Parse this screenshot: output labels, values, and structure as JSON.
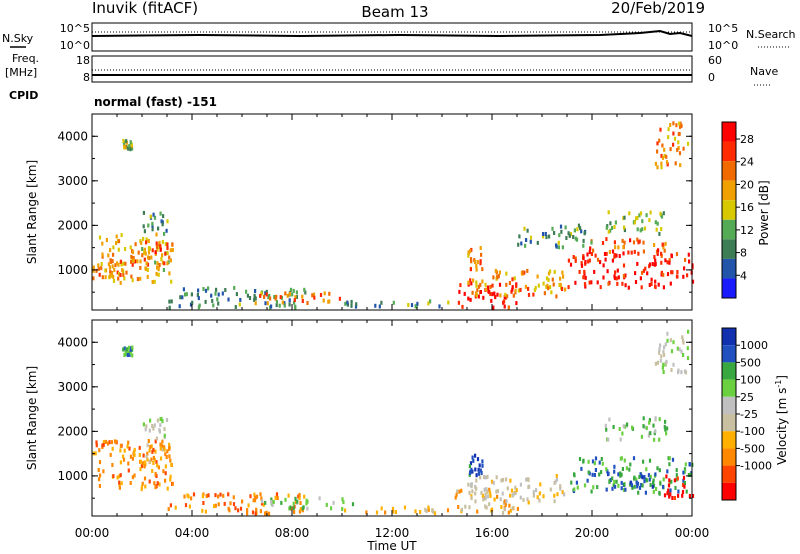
{
  "header": {
    "station": "Inuvik (fitACF)",
    "beam": "Beam 13",
    "date": "20/Feb/2019"
  },
  "top_panels": {
    "nsky_label": "N.Sky",
    "nsky_ticks": [
      "10^5",
      "10^0"
    ],
    "nsearch_label": "N.Search",
    "nsearch_ticks": [
      "10^5",
      "10^0"
    ],
    "freq_label": "Freq.",
    "freq_unit": "[MHz]",
    "freq_ticks": [
      "18",
      "8"
    ],
    "nave_label": "Nave",
    "nave_ticks": [
      "60",
      "0"
    ],
    "cpid_label": "CPID",
    "cpid_value": "normal (fast) -151"
  },
  "colors": {
    "power_scale": [
      "#1a1aff",
      "#2255aa",
      "#3d7d55",
      "#55aa55",
      "#d8c800",
      "#f0a000",
      "#f06a00",
      "#ff2a00",
      "#ff0000"
    ],
    "velocity_scale": [
      "#ff0000",
      "#ff4400",
      "#ff8800",
      "#ffb000",
      "#c8c0a0",
      "#c0c0c0",
      "#6ad040",
      "#3aa840",
      "#2050c0",
      "#1030b0"
    ]
  },
  "chart_data": [
    {
      "type": "heatmap",
      "name": "power",
      "xlabel": "",
      "ylabel": "Slant Range [km]",
      "ylim": [
        100,
        4500
      ],
      "yticks": [
        "1000",
        "2000",
        "3000",
        "4000"
      ],
      "x_ticks": [
        "00:00",
        "04:00",
        "08:00",
        "12:00",
        "16:00",
        "20:00",
        "00:00"
      ],
      "xlim_hours": [
        0,
        24
      ],
      "colorbar_label": "Power [dB]",
      "colorbar_ticks": [
        "4",
        "8",
        "12",
        "16",
        "20",
        "24",
        "28"
      ],
      "colorbar_range": [
        0,
        31
      ],
      "patches": [
        {
          "t0": 0.0,
          "t1": 3.2,
          "r0": 700,
          "r1": 1800,
          "level": 18
        },
        {
          "t0": 1.5,
          "t1": 3.0,
          "r0": 1100,
          "r1": 1700,
          "level": 24
        },
        {
          "t0": 0.2,
          "t1": 1.2,
          "r0": 800,
          "r1": 1200,
          "level": 20
        },
        {
          "t0": 2.0,
          "t1": 3.0,
          "r0": 1800,
          "r1": 2300,
          "level": 10
        },
        {
          "t0": 3.0,
          "t1": 8.5,
          "r0": 150,
          "r1": 600,
          "level": 9
        },
        {
          "t0": 6.5,
          "t1": 10.5,
          "r0": 250,
          "r1": 500,
          "level": 22
        },
        {
          "t0": 10.0,
          "t1": 14.5,
          "r0": 150,
          "r1": 300,
          "level": 10
        },
        {
          "t0": 14.5,
          "t1": 17.0,
          "r0": 150,
          "r1": 700,
          "level": 28
        },
        {
          "t0": 15.0,
          "t1": 19.0,
          "r0": 400,
          "r1": 1000,
          "level": 20
        },
        {
          "t0": 15.0,
          "t1": 15.6,
          "r0": 1000,
          "r1": 1500,
          "level": 22
        },
        {
          "t0": 19.0,
          "t1": 24.0,
          "r0": 600,
          "r1": 1400,
          "level": 28
        },
        {
          "t0": 19.5,
          "t1": 23.0,
          "r0": 1400,
          "r1": 1700,
          "level": 24
        },
        {
          "t0": 20.5,
          "t1": 23.0,
          "r0": 1800,
          "r1": 2300,
          "level": 13
        },
        {
          "t0": 17.0,
          "t1": 20.0,
          "r0": 1500,
          "r1": 2000,
          "level": 10
        },
        {
          "t0": 1.2,
          "t1": 1.6,
          "r0": 3700,
          "r1": 3900,
          "level": 14
        },
        {
          "t0": 22.5,
          "t1": 23.8,
          "r0": 3300,
          "r1": 4300,
          "level": 20
        }
      ]
    },
    {
      "type": "heatmap",
      "name": "velocity",
      "xlabel": "Time UT",
      "ylabel": "Slant Range [km]",
      "ylim": [
        100,
        4500
      ],
      "yticks": [
        "1000",
        "2000",
        "3000",
        "4000"
      ],
      "x_ticks": [
        "00:00",
        "04:00",
        "08:00",
        "12:00",
        "16:00",
        "20:00",
        "00:00"
      ],
      "xlim_hours": [
        0,
        24
      ],
      "colorbar_label": "Velocity [m s",
      "colorbar_label_sup": "-1",
      "colorbar_label_end": "]",
      "colorbar_ticks": [
        "1000",
        "500",
        "100",
        "25",
        "-25",
        "-100",
        "-500",
        "-1000"
      ],
      "patches": [
        {
          "t0": 0.0,
          "t1": 3.2,
          "r0": 700,
          "r1": 1800,
          "level": 2
        },
        {
          "t0": 1.5,
          "t1": 3.0,
          "r0": 1100,
          "r1": 1700,
          "level": 3
        },
        {
          "t0": 2.0,
          "t1": 3.0,
          "r0": 1800,
          "r1": 2300,
          "level": 5
        },
        {
          "t0": 3.0,
          "t1": 8.5,
          "r0": 150,
          "r1": 600,
          "level": 2
        },
        {
          "t0": 6.5,
          "t1": 10.5,
          "r0": 250,
          "r1": 500,
          "level": 6
        },
        {
          "t0": 10.0,
          "t1": 14.5,
          "r0": 150,
          "r1": 300,
          "level": 3
        },
        {
          "t0": 14.5,
          "t1": 17.0,
          "r0": 150,
          "r1": 700,
          "level": 3
        },
        {
          "t0": 15.0,
          "t1": 19.0,
          "r0": 400,
          "r1": 1000,
          "level": 4
        },
        {
          "t0": 15.0,
          "t1": 15.6,
          "r0": 1000,
          "r1": 1500,
          "level": 8
        },
        {
          "t0": 19.0,
          "t1": 24.0,
          "r0": 600,
          "r1": 1400,
          "level": 7
        },
        {
          "t0": 20.5,
          "t1": 22.5,
          "r0": 700,
          "r1": 1100,
          "level": 8
        },
        {
          "t0": 22.8,
          "t1": 24.0,
          "r0": 500,
          "r1": 1000,
          "level": 0
        },
        {
          "t0": 20.5,
          "t1": 23.0,
          "r0": 1800,
          "r1": 2300,
          "level": 6
        },
        {
          "t0": 1.2,
          "t1": 1.6,
          "r0": 3700,
          "r1": 3900,
          "level": 7
        },
        {
          "t0": 22.5,
          "t1": 23.8,
          "r0": 3300,
          "r1": 4300,
          "level": 5
        }
      ]
    }
  ]
}
